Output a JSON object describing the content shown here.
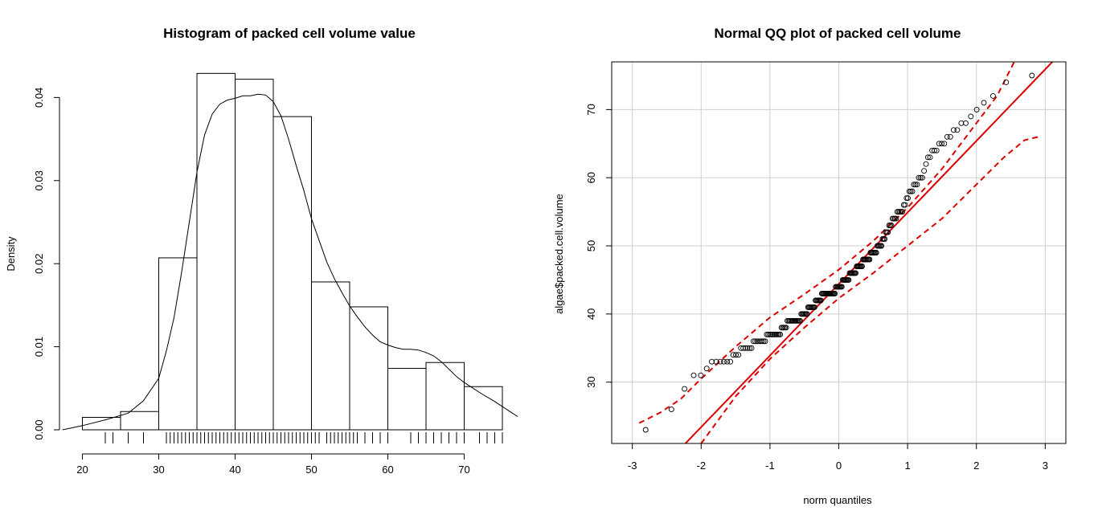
{
  "chart_data": [
    {
      "type": "bar",
      "title": "Histogram of packed cell volume value",
      "xlabel": "",
      "ylabel": "Density",
      "xlim": [
        17,
        77
      ],
      "ylim": [
        0,
        0.044
      ],
      "x_ticks": [
        20,
        30,
        40,
        50,
        60,
        70
      ],
      "y_ticks": [
        0.0,
        0.01,
        0.02,
        0.03,
        0.04
      ],
      "y_tick_labels": [
        "0.00",
        "0.01",
        "0.02",
        "0.03",
        "0.04"
      ],
      "bins": [
        {
          "from": 20,
          "to": 25,
          "density": 0.0015
        },
        {
          "from": 25,
          "to": 30,
          "density": 0.0022
        },
        {
          "from": 30,
          "to": 35,
          "density": 0.0207
        },
        {
          "from": 35,
          "to": 40,
          "density": 0.0429
        },
        {
          "from": 40,
          "to": 45,
          "density": 0.0422
        },
        {
          "from": 45,
          "to": 50,
          "density": 0.0377
        },
        {
          "from": 50,
          "to": 55,
          "density": 0.0178
        },
        {
          "from": 55,
          "to": 60,
          "density": 0.0148
        },
        {
          "from": 60,
          "to": 65,
          "density": 0.0074
        },
        {
          "from": 65,
          "to": 70,
          "density": 0.0081
        },
        {
          "from": 70,
          "to": 75,
          "density": 0.0052
        }
      ],
      "density_curve": {
        "x": [
          17.4,
          20,
          23,
          26,
          28,
          30,
          31,
          32,
          33,
          34,
          35,
          36,
          37,
          38,
          39,
          40,
          41,
          42,
          43,
          44,
          45,
          46,
          47,
          48,
          49,
          50,
          51,
          52,
          53,
          54,
          55,
          56,
          57,
          58,
          59,
          60,
          61,
          62,
          63,
          64,
          65,
          66,
          67,
          68,
          69,
          70,
          72,
          74,
          76,
          77
        ],
        "y": [
          0.0,
          0.0005,
          0.0012,
          0.002,
          0.0035,
          0.0062,
          0.0095,
          0.0135,
          0.019,
          0.025,
          0.031,
          0.0355,
          0.038,
          0.0392,
          0.0397,
          0.0399,
          0.0402,
          0.0402,
          0.0404,
          0.0403,
          0.0395,
          0.0378,
          0.035,
          0.0318,
          0.0288,
          0.0254,
          0.0228,
          0.0202,
          0.0182,
          0.0165,
          0.0149,
          0.0136,
          0.0124,
          0.0114,
          0.0106,
          0.0102,
          0.0099,
          0.0097,
          0.0097,
          0.0096,
          0.0093,
          0.0089,
          0.0082,
          0.0073,
          0.0064,
          0.0057,
          0.0045,
          0.0034,
          0.0022,
          0.0016
        ]
      },
      "rug": [
        23,
        24,
        26,
        28,
        31,
        31.5,
        32,
        32.5,
        33,
        33.5,
        34,
        34.5,
        35,
        35.5,
        36,
        36.5,
        37,
        37.5,
        38,
        38.5,
        39,
        39.5,
        40,
        40.5,
        41,
        41.5,
        42,
        42.5,
        43,
        43.5,
        44,
        44.5,
        45,
        45.5,
        46,
        46.5,
        47,
        47.5,
        48,
        48.5,
        49,
        49.5,
        50,
        50.5,
        51,
        52,
        52.5,
        53,
        53.5,
        54,
        54.5,
        55,
        55.5,
        56,
        57,
        58,
        59,
        60,
        63,
        64,
        65,
        66,
        67,
        68,
        69,
        70,
        72,
        73,
        74,
        75
      ],
      "grid": false
    },
    {
      "type": "scatter",
      "title": "Normal QQ plot of packed cell volume",
      "xlabel": "norm quantiles",
      "ylabel": "algae$packed.cell.volume",
      "xlim": [
        -3.3,
        3.3
      ],
      "ylim": [
        21,
        77
      ],
      "x_ticks": [
        -3,
        -2,
        -1,
        0,
        1,
        2,
        3
      ],
      "y_ticks": [
        30,
        40,
        50,
        60,
        70
      ],
      "grid": true,
      "n_points": 200,
      "points_summary": {
        "x": [
          -2.9,
          -2.55,
          -2.4,
          -2.3,
          -2.2,
          -2.1,
          -2.05,
          -1.95,
          -1.9,
          -1.8,
          -1.75,
          -1.7,
          -1.6,
          -1.5,
          -1.4,
          -1.3,
          -1.2,
          -1.1,
          -1.0,
          -0.9,
          -0.8,
          -0.7,
          -0.6,
          -0.5,
          -0.4,
          -0.3,
          -0.2,
          -0.1,
          0.0,
          0.1,
          0.2,
          0.3,
          0.4,
          0.5,
          0.6,
          0.7,
          0.8,
          0.9,
          1.0,
          1.1,
          1.2,
          1.3,
          1.4,
          1.5,
          1.6,
          1.7,
          1.8,
          1.9,
          2.0,
          2.1,
          2.2,
          2.3,
          2.55,
          2.9
        ],
        "y": [
          23,
          24,
          26,
          28,
          30,
          31,
          31,
          32,
          32,
          33,
          33,
          33,
          33,
          34,
          35,
          35,
          36,
          36,
          37,
          37,
          38,
          39,
          39,
          40,
          41,
          42,
          43,
          43,
          44,
          45,
          46,
          47,
          48,
          49,
          50,
          52,
          54,
          55,
          57,
          59,
          60,
          63,
          64,
          65,
          66,
          67,
          68,
          69,
          70,
          71,
          72,
          73,
          75,
          75
        ]
      },
      "reference_line": {
        "intercept": 44.4,
        "slope": 10.5
      },
      "confidence_envelope": {
        "upper": {
          "x": [
            -2.9,
            -2.6,
            -2.3,
            -2.0,
            -1.5,
            -1.0,
            -0.5,
            0.0,
            0.5,
            1.0,
            1.5,
            2.0,
            2.3,
            2.55
          ],
          "y": [
            24,
            25.5,
            27.5,
            30.5,
            35.2,
            39.5,
            42.9,
            46.5,
            50.7,
            55.6,
            61.3,
            68.0,
            72.0,
            77.0
          ]
        },
        "lower": {
          "x": [
            -2.0,
            -1.5,
            -1.0,
            -0.5,
            0.0,
            0.5,
            1.0,
            1.5,
            2.0,
            2.4,
            2.7,
            2.9
          ],
          "y": [
            21.0,
            27.9,
            33.4,
            38.0,
            42.3,
            46.0,
            50.0,
            54.0,
            59.0,
            63.0,
            65.5,
            66.0
          ]
        }
      }
    }
  ],
  "colors": {
    "bar_fill": "#ffffff",
    "bar_stroke": "#000000",
    "qq_line": "#dd0000",
    "grid": "#cfcfcf",
    "points": "#000000"
  }
}
